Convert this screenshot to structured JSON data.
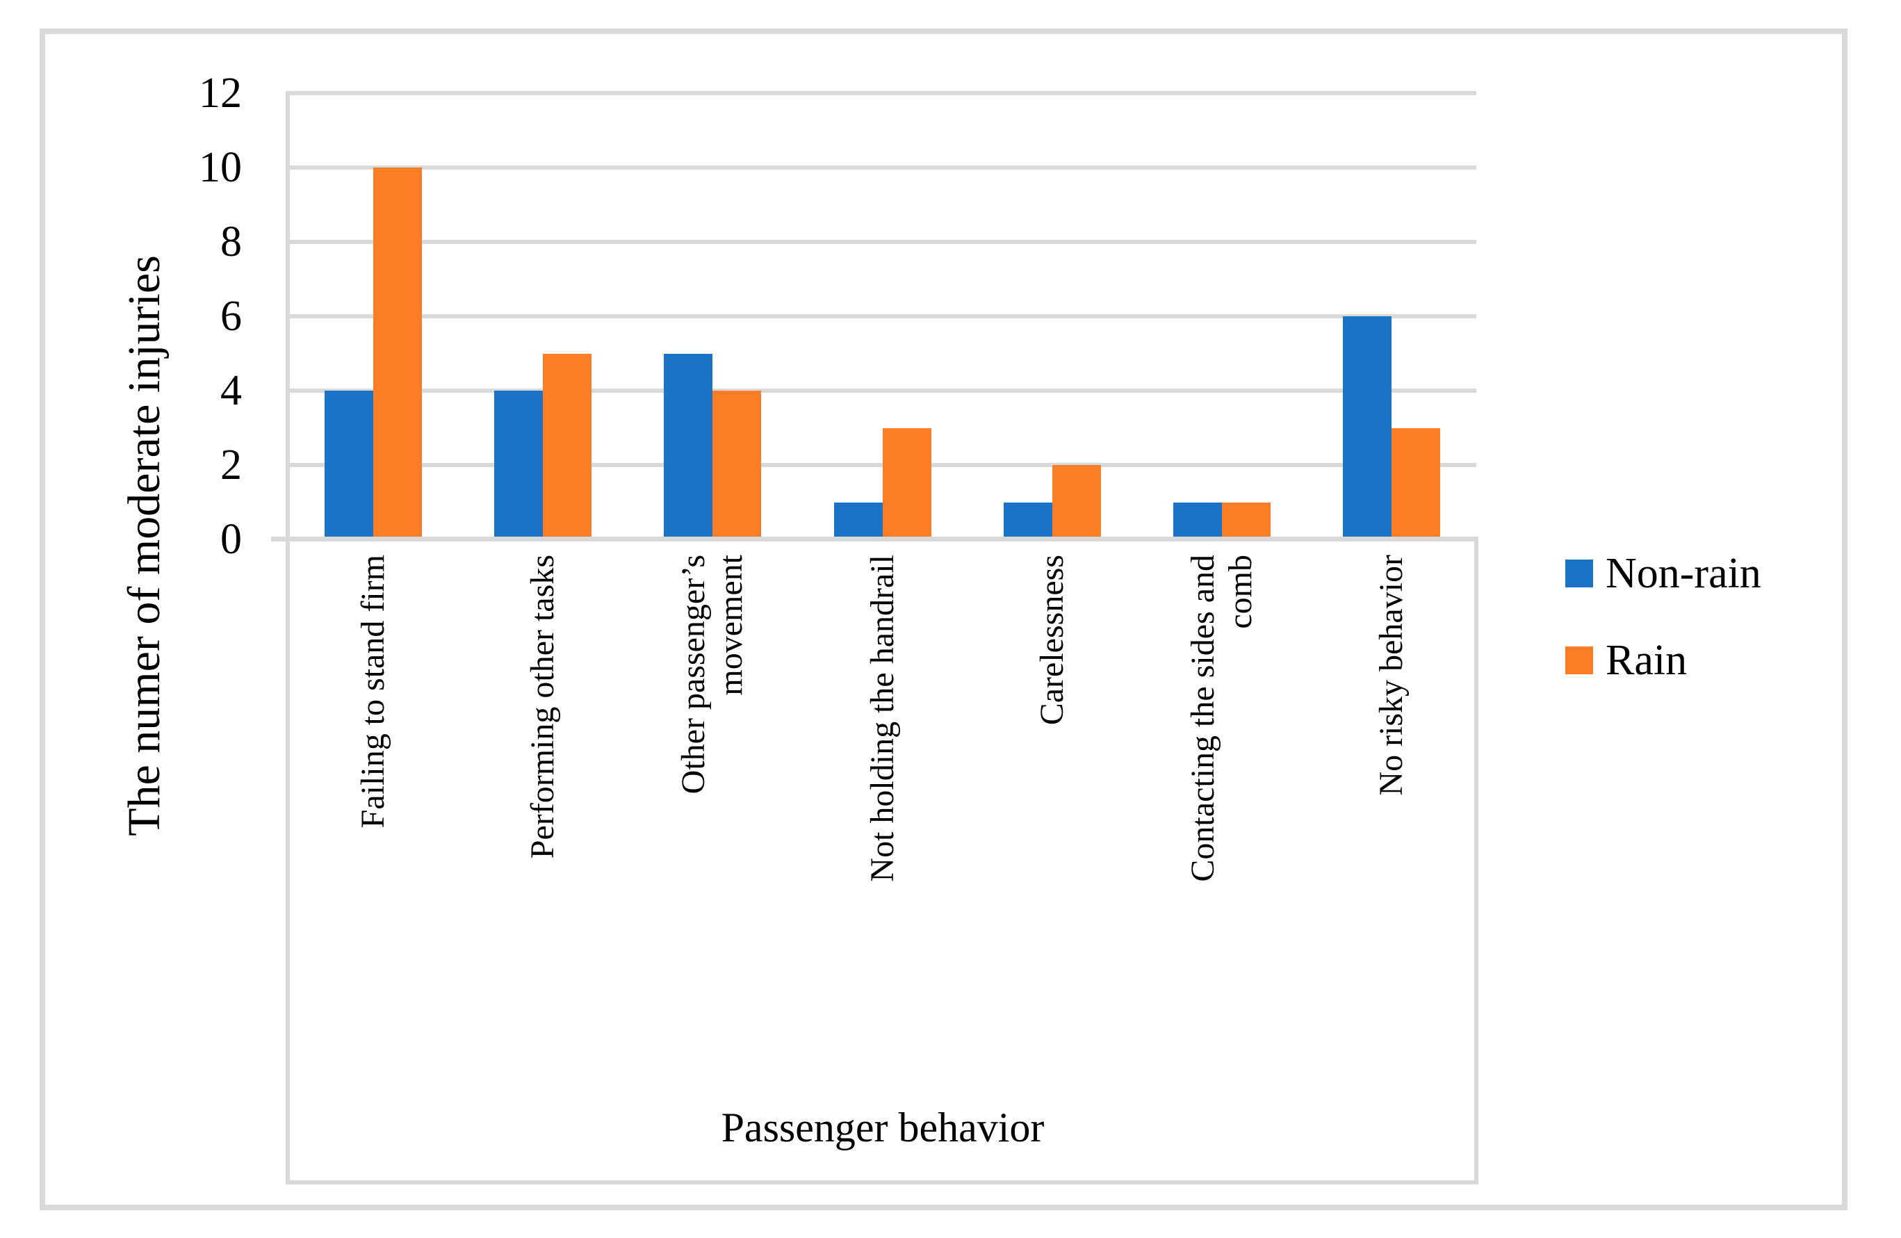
{
  "figure": {
    "background": "#FFFFFF",
    "border_color": "#D9D9D9",
    "gridline_color": "#D9D9D9"
  },
  "chart_data": {
    "type": "bar",
    "title": "",
    "xlabel": "Passenger behavior",
    "ylabel": "The numer of moderate injuries",
    "categories": [
      "Failing to stand firm",
      "Performing other tasks",
      "Other passenger’s\nmovement",
      "Not holding the handrail",
      "Carelessness",
      "Contacting the sides and\ncomb",
      "No risky behavior"
    ],
    "series": [
      {
        "name": "Non-rain",
        "color": "#1B73C8",
        "values": [
          4,
          4,
          5,
          1,
          1,
          1,
          6
        ]
      },
      {
        "name": "Rain",
        "color": "#FC7D26",
        "values": [
          10,
          5,
          4,
          3,
          2,
          1,
          3
        ]
      }
    ],
    "ylim": [
      0,
      12
    ],
    "yticks": [
      0,
      2,
      4,
      6,
      8,
      10,
      12
    ],
    "grid": true,
    "legend_position": "right"
  },
  "legend": {
    "items": [
      {
        "label": "Non-rain",
        "color": "#1B73C8"
      },
      {
        "label": "Rain",
        "color": "#FC7D26"
      }
    ]
  }
}
